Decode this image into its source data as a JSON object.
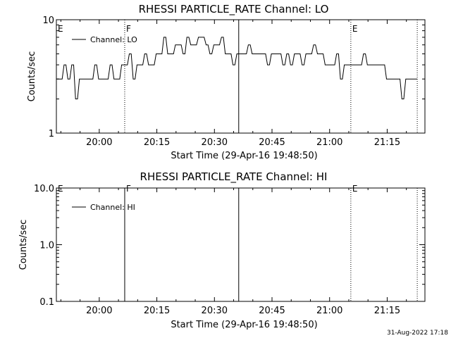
{
  "stamp": "31-Aug-2022 17:18",
  "chart_data": [
    {
      "type": "line",
      "title": "RHESSI PARTICLE_RATE Channel: LO",
      "xlabel": "Start Time (29-Apr-16 19:48:50)",
      "ylabel": "Counts/sec",
      "yscale": "log",
      "ylim": [
        1,
        10
      ],
      "xlim_minutes": [
        0,
        96
      ],
      "x_ticks": [
        "20:00",
        "20:15",
        "20:30",
        "20:45",
        "21:00",
        "21:15"
      ],
      "y_ticks": [
        "1",
        "10"
      ],
      "legend": {
        "position": "top-left",
        "entries": [
          "Channel: LO"
        ]
      },
      "markers": [
        {
          "label": "E",
          "x_minutes": 0,
          "style": "none"
        },
        {
          "label": "F",
          "x_minutes": 17.8,
          "style": "dotted"
        },
        {
          "label": "",
          "x_minutes": 47.5,
          "style": "solid"
        },
        {
          "label": "E",
          "x_minutes": 76.7,
          "style": "dotted"
        },
        {
          "label": "",
          "x_minutes": 94.0,
          "style": "dotted"
        }
      ],
      "series": [
        {
          "name": "Channel: LO",
          "t_minutes": [
            0,
            1,
            2,
            3,
            4,
            5,
            6,
            7,
            8,
            9,
            10,
            11,
            12,
            13,
            14,
            15,
            16,
            17,
            18,
            19,
            20,
            21,
            22,
            23,
            24,
            25,
            26,
            27,
            28,
            29,
            30,
            31,
            32,
            33,
            34,
            35,
            36,
            37,
            38,
            39,
            40,
            41,
            42,
            43,
            44,
            45,
            46,
            47,
            48,
            49,
            50,
            51,
            52,
            53,
            54,
            55,
            56,
            57,
            58,
            59,
            60,
            61,
            62,
            63,
            64,
            65,
            66,
            67,
            68,
            69,
            70,
            71,
            72,
            73,
            74,
            75,
            76,
            77,
            78,
            79,
            80,
            81,
            82,
            83,
            84,
            85,
            86,
            87,
            88,
            89,
            90,
            91,
            92,
            93,
            94
          ],
          "values": [
            3,
            3,
            4,
            3,
            4,
            2,
            3,
            3,
            3,
            3,
            4,
            3,
            3,
            3,
            4,
            3,
            3,
            4,
            4,
            5,
            3,
            4,
            4,
            5,
            4,
            4,
            5,
            5,
            7,
            5,
            5,
            6,
            6,
            5,
            7,
            6,
            6,
            7,
            7,
            6,
            5,
            6,
            6,
            7,
            5,
            5,
            4,
            5,
            5,
            5,
            6,
            5,
            5,
            5,
            5,
            4,
            5,
            5,
            5,
            4,
            5,
            4,
            5,
            5,
            4,
            5,
            5,
            6,
            5,
            5,
            4,
            4,
            4,
            5,
            3,
            4,
            4,
            4,
            4,
            4,
            5,
            4,
            4,
            4,
            4,
            4,
            3,
            3,
            3,
            3,
            2,
            3,
            3,
            3,
            3
          ],
          "color": "#000000"
        }
      ]
    },
    {
      "type": "line",
      "title": "RHESSI PARTICLE_RATE Channel: HI",
      "xlabel": "Start Time (29-Apr-16 19:48:50)",
      "ylabel": "Counts/sec",
      "yscale": "log",
      "ylim": [
        0.1,
        10
      ],
      "xlim_minutes": [
        0,
        96
      ],
      "x_ticks": [
        "20:00",
        "20:15",
        "20:30",
        "20:45",
        "21:00",
        "21:15"
      ],
      "y_ticks": [
        "0.1",
        "1.0",
        "10.0"
      ],
      "legend": {
        "position": "top-left",
        "entries": [
          "Channel: HI"
        ]
      },
      "markers": [
        {
          "label": "E",
          "x_minutes": 0,
          "style": "none"
        },
        {
          "label": "F",
          "x_minutes": 17.8,
          "style": "solid"
        },
        {
          "label": "",
          "x_minutes": 47.5,
          "style": "solid"
        },
        {
          "label": "E",
          "x_minutes": 76.7,
          "style": "dotted"
        },
        {
          "label": "",
          "x_minutes": 94.0,
          "style": "dotted"
        }
      ],
      "series": [
        {
          "name": "Channel: HI",
          "t_minutes": [],
          "values": [],
          "color": "#000000"
        }
      ]
    }
  ]
}
